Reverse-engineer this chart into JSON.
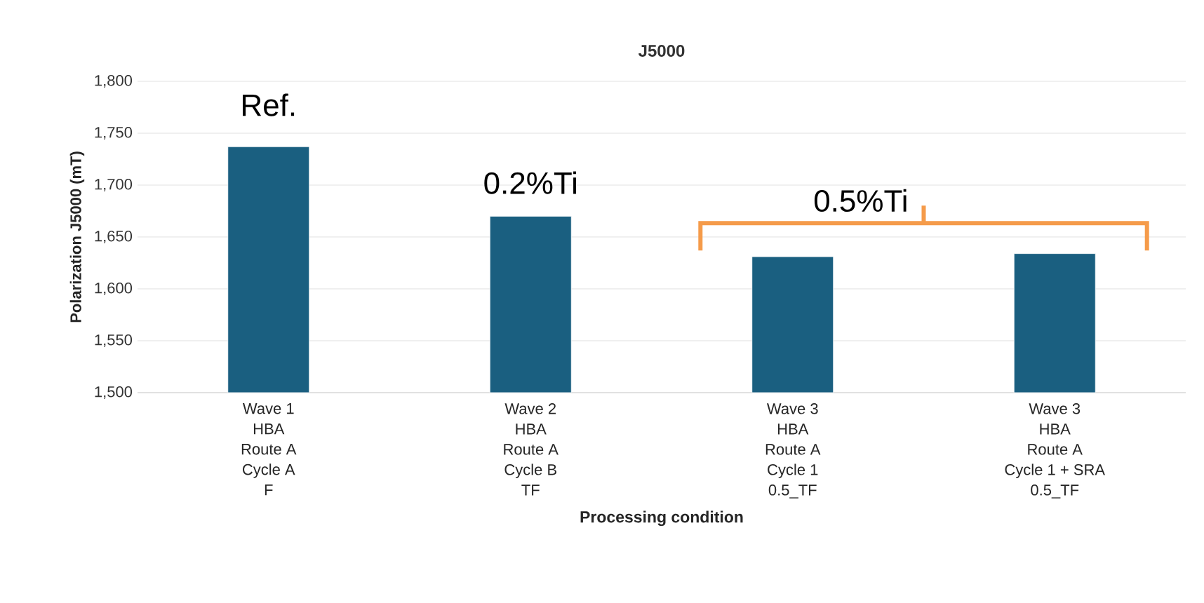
{
  "chart_data": {
    "type": "bar",
    "title": "J5000",
    "xlabel": "Processing condition",
    "ylabel": "Polarization J5000 (mT)",
    "categories": [
      "Wave 1\nHBA\nRoute A\nCycle A\nF",
      "Wave 2\nHBA\nRoute A\nCycle B\nTF",
      "Wave 3\nHBA\nRoute A\nCycle 1\n0.5_TF",
      "Wave 3\nHBA\nRoute A\nCycle 1 + SRA\n0.5_TF"
    ],
    "values": [
      1737,
      1670,
      1631,
      1634
    ],
    "color": "#1a5f80",
    "ylim": [
      1500,
      1800
    ],
    "yticks": [
      {
        "value": 1500,
        "label": "1,500"
      },
      {
        "value": 1550,
        "label": "1,550"
      },
      {
        "value": 1600,
        "label": "1,600"
      },
      {
        "value": 1650,
        "label": "1,650"
      },
      {
        "value": 1700,
        "label": "1,700"
      },
      {
        "value": 1750,
        "label": "1,750"
      },
      {
        "value": 1800,
        "label": "1,800"
      }
    ],
    "grid": "y",
    "annotations": [
      "Ref.",
      "0.2%Ti",
      "0.5%Ti"
    ]
  }
}
